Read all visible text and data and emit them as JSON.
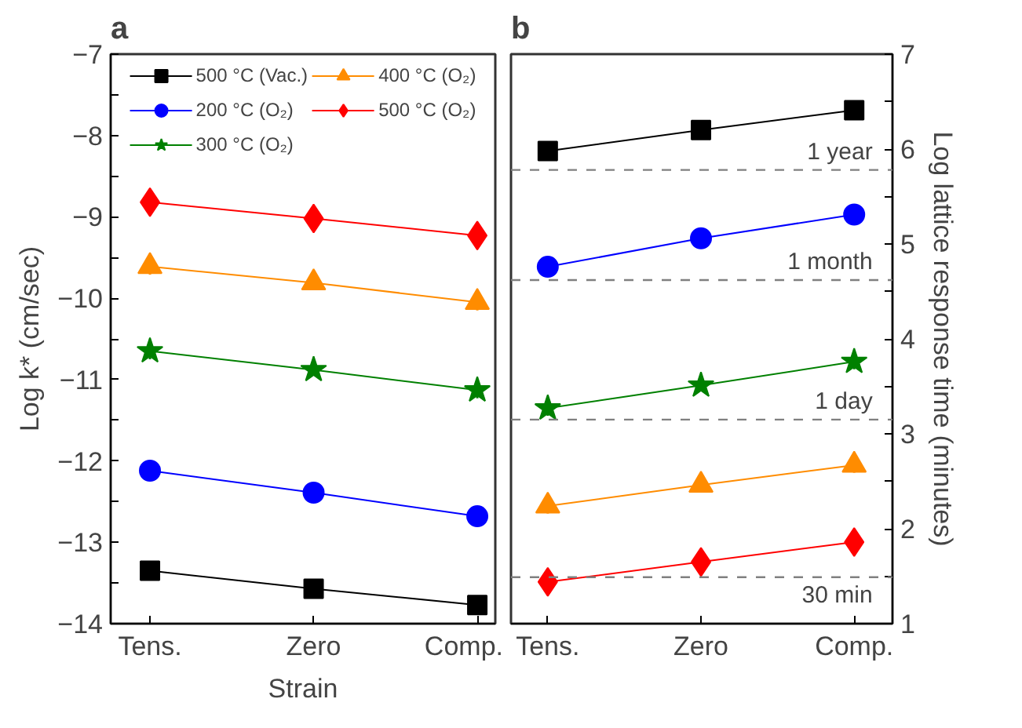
{
  "chart_data": [
    {
      "type": "line",
      "title": "a",
      "xlabel": "Strain",
      "ylabel": "Log k* (cm/sec)",
      "categories": [
        "Tens.",
        "Zero",
        "Comp."
      ],
      "ylim": [
        -14,
        -7
      ],
      "yticks": [
        -14,
        {
          "value": -13.5,
          "label": null
        },
        -13,
        {
          "value": -12.5,
          "label": null
        },
        -12,
        {
          "value": -11.5,
          "label": null
        },
        -11,
        {
          "value": -10.5,
          "label": null
        },
        -10,
        {
          "value": -9.5,
          "label": null
        },
        -9,
        {
          "value": -8.5,
          "label": null
        },
        -8,
        {
          "value": -7.5,
          "label": null
        },
        -7
      ],
      "legend": "top",
      "grid": false,
      "series": [
        {
          "name": "500 °C (Vac.)",
          "color": "#000000",
          "marker": "square",
          "values": [
            -13.35,
            -13.57,
            -13.77
          ]
        },
        {
          "name": "200 °C (O₂)",
          "color": "#0000ff",
          "marker": "circle",
          "values": [
            -12.12,
            -12.39,
            -12.68
          ],
          "errors": [
            0.07,
            0.05,
            0.08
          ]
        },
        {
          "name": "300 °C (O₂)",
          "color": "#008000",
          "marker": "star",
          "values": [
            -10.65,
            -10.88,
            -11.13
          ],
          "errors": [
            0.1,
            0.05,
            0.1
          ]
        },
        {
          "name": "400 °C (O₂)",
          "color": "#ff8c00",
          "marker": "triangle",
          "values": [
            -9.61,
            -9.81,
            -10.05
          ],
          "errors": [
            0.1,
            0.05,
            0.1
          ]
        },
        {
          "name": "500 °C (O₂)",
          "color": "#ff0000",
          "marker": "diamond",
          "values": [
            -8.82,
            -9.02,
            -9.23
          ]
        }
      ]
    },
    {
      "type": "line",
      "title": "b",
      "ylabel": "Log lattice response time (minutes)",
      "categories": [
        "Tens.",
        "Zero",
        "Comp."
      ],
      "ylim": [
        1,
        7
      ],
      "yticks": [
        1,
        {
          "value": 1.5,
          "label": null
        },
        2,
        {
          "value": 2.5,
          "label": null
        },
        3,
        {
          "value": 3.5,
          "label": null
        },
        4,
        {
          "value": 4.5,
          "label": null
        },
        5,
        {
          "value": 5.5,
          "label": null
        },
        6,
        {
          "value": 6.5,
          "label": null
        },
        7
      ],
      "grid": false,
      "series": [
        {
          "color": "#000000",
          "marker": "square",
          "values": [
            5.98,
            6.2,
            6.41
          ]
        },
        {
          "color": "#0000ff",
          "marker": "circle",
          "values": [
            4.76,
            5.06,
            5.31
          ],
          "errors": [
            0.07,
            0.04,
            0.07
          ]
        },
        {
          "color": "#008000",
          "marker": "star",
          "values": [
            3.27,
            3.51,
            3.76
          ],
          "errors": [
            0.08,
            0.04,
            0.08
          ]
        },
        {
          "color": "#ff8c00",
          "marker": "triangle",
          "values": [
            2.24,
            2.46,
            2.67
          ],
          "errors": [
            0.08,
            0.04,
            0.08
          ]
        },
        {
          "color": "#ff0000",
          "marker": "diamond",
          "values": [
            1.44,
            1.65,
            1.86
          ],
          "errors": [
            0.06,
            0.04,
            0.05
          ]
        }
      ],
      "ref_lines": [
        {
          "axis": "y",
          "value": 5.78,
          "label": "1 year",
          "color": "#808080",
          "line_style": "dashed"
        },
        {
          "axis": "y",
          "value": 4.62,
          "label": "1 month",
          "color": "#808080",
          "line_style": "dashed"
        },
        {
          "axis": "y",
          "value": 3.15,
          "label": "1 day",
          "color": "#808080",
          "line_style": "dashed"
        },
        {
          "axis": "y",
          "value": 1.49,
          "label": "30 min",
          "color": "#808080",
          "line_style": "dashed"
        }
      ]
    }
  ]
}
